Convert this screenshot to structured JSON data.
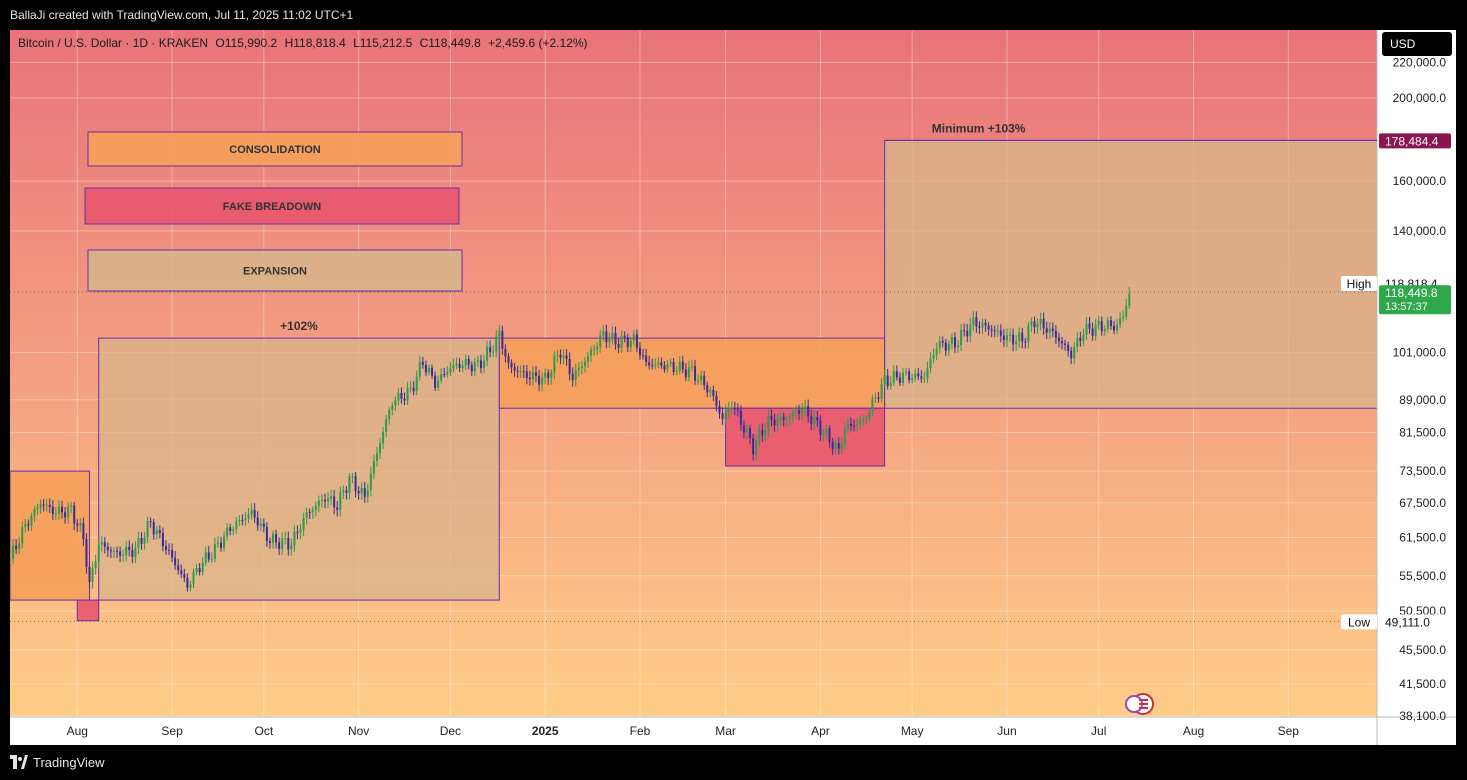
{
  "header": {
    "attribution": "BallaJi created with TradingView.com, Jul 11, 2025 11:02 UTC+1"
  },
  "symbol_legend": {
    "name": "Bitcoin / U.S. Dollar · 1D · KRAKEN",
    "open": "O115,990.2",
    "high": "H118,818.4",
    "low": "L115,212.5",
    "close": "C118,449.8",
    "change": "+2,459.6 (+2.12%)"
  },
  "currency_button": "USD",
  "footer": {
    "brand": "TradingView"
  },
  "colors": {
    "bg_top": "#e8737a",
    "bg_bottom": "#ffcd87",
    "orange_zone": "#f5a05a",
    "red_zone": "#e8566e",
    "expansion_zone": "#d8b48a",
    "zone_border": "#6a2bb0",
    "up_candle": "#2e9a4c",
    "down_candle": "#3a2a9a",
    "high_badge": "#8a1550",
    "price_badge": "#2ea84a"
  },
  "chart_data": {
    "type": "candlestick",
    "symbol": "Bitcoin / U.S. Dollar",
    "interval": "1D",
    "exchange": "KRAKEN",
    "yscale": "log",
    "y_tick_labels": [
      "220,000.0",
      "200,000.0",
      "160,000.0",
      "140,000.0",
      "101,000.0",
      "89,000.0",
      "81,500.0",
      "73,500.0",
      "67,500.0",
      "61,500.0",
      "55,500.0",
      "50,500.0",
      "45,500.0",
      "41,500.0",
      "38,100.0"
    ],
    "y_ticks": [
      220000,
      200000,
      160000,
      140000,
      101000,
      89000,
      81500,
      73500,
      67500,
      61500,
      55500,
      50500,
      45500,
      41500,
      38100
    ],
    "x_tick_labels": [
      "Aug",
      "Sep",
      "Oct",
      "Nov",
      "Dec",
      "2025",
      "Feb",
      "Mar",
      "Apr",
      "May",
      "Jun",
      "Jul",
      "Aug",
      "Sep"
    ],
    "x_ticks": [
      "2024-08-01",
      "2024-09-01",
      "2024-10-01",
      "2024-11-01",
      "2024-12-01",
      "2025-01-01",
      "2025-02-01",
      "2025-03-01",
      "2025-04-01",
      "2025-05-01",
      "2025-06-01",
      "2025-07-01",
      "2025-08-01",
      "2025-09-01"
    ],
    "xlim": [
      "2024-07-10",
      "2025-09-30"
    ],
    "ylim": [
      38000,
      240000
    ],
    "grid": true,
    "price_series": [
      {
        "date": "2024-07-10",
        "close": 58000
      },
      {
        "date": "2024-07-15",
        "close": 63500
      },
      {
        "date": "2024-07-20",
        "close": 67500
      },
      {
        "date": "2024-07-25",
        "close": 65800
      },
      {
        "date": "2024-07-30",
        "close": 66200
      },
      {
        "date": "2024-08-03",
        "close": 61500
      },
      {
        "date": "2024-08-05",
        "close": 54000
      },
      {
        "date": "2024-08-08",
        "close": 60500
      },
      {
        "date": "2024-08-14",
        "close": 58900
      },
      {
        "date": "2024-08-20",
        "close": 59500
      },
      {
        "date": "2024-08-25",
        "close": 64000
      },
      {
        "date": "2024-08-31",
        "close": 59000
      },
      {
        "date": "2024-09-06",
        "close": 54000
      },
      {
        "date": "2024-09-10",
        "close": 57000
      },
      {
        "date": "2024-09-15",
        "close": 59500
      },
      {
        "date": "2024-09-20",
        "close": 63000
      },
      {
        "date": "2024-09-27",
        "close": 65800
      },
      {
        "date": "2024-10-03",
        "close": 61000
      },
      {
        "date": "2024-10-10",
        "close": 60500
      },
      {
        "date": "2024-10-15",
        "close": 65500
      },
      {
        "date": "2024-10-21",
        "close": 68500
      },
      {
        "date": "2024-10-25",
        "close": 67000
      },
      {
        "date": "2024-10-29",
        "close": 72000
      },
      {
        "date": "2024-11-03",
        "close": 68500
      },
      {
        "date": "2024-11-06",
        "close": 75000
      },
      {
        "date": "2024-11-12",
        "close": 88500
      },
      {
        "date": "2024-11-18",
        "close": 91000
      },
      {
        "date": "2024-11-22",
        "close": 98500
      },
      {
        "date": "2024-11-26",
        "close": 93000
      },
      {
        "date": "2024-12-01",
        "close": 97000
      },
      {
        "date": "2024-12-05",
        "close": 98000
      },
      {
        "date": "2024-12-10",
        "close": 97500
      },
      {
        "date": "2024-12-14",
        "close": 101500
      },
      {
        "date": "2024-12-17",
        "close": 106000
      },
      {
        "date": "2024-12-20",
        "close": 97500
      },
      {
        "date": "2024-12-26",
        "close": 95000
      },
      {
        "date": "2025-01-01",
        "close": 94000
      },
      {
        "date": "2025-01-06",
        "close": 101500
      },
      {
        "date": "2025-01-10",
        "close": 94500
      },
      {
        "date": "2025-01-15",
        "close": 100000
      },
      {
        "date": "2025-01-20",
        "close": 106000
      },
      {
        "date": "2025-01-24",
        "close": 104000
      },
      {
        "date": "2025-01-30",
        "close": 104500
      },
      {
        "date": "2025-02-03",
        "close": 98000
      },
      {
        "date": "2025-02-10",
        "close": 97500
      },
      {
        "date": "2025-02-18",
        "close": 96000
      },
      {
        "date": "2025-02-24",
        "close": 91000
      },
      {
        "date": "2025-02-28",
        "close": 84500
      },
      {
        "date": "2025-03-03",
        "close": 88000
      },
      {
        "date": "2025-03-10",
        "close": 78500
      },
      {
        "date": "2025-03-15",
        "close": 84000
      },
      {
        "date": "2025-03-20",
        "close": 84500
      },
      {
        "date": "2025-03-26",
        "close": 87000
      },
      {
        "date": "2025-04-01",
        "close": 82500
      },
      {
        "date": "2025-04-07",
        "close": 77500
      },
      {
        "date": "2025-04-09",
        "close": 82500
      },
      {
        "date": "2025-04-15",
        "close": 84000
      },
      {
        "date": "2025-04-22",
        "close": 93500
      },
      {
        "date": "2025-04-28",
        "close": 95000
      },
      {
        "date": "2025-05-05",
        "close": 94500
      },
      {
        "date": "2025-05-09",
        "close": 103000
      },
      {
        "date": "2025-05-15",
        "close": 103500
      },
      {
        "date": "2025-05-21",
        "close": 109500
      },
      {
        "date": "2025-05-26",
        "close": 108000
      },
      {
        "date": "2025-06-01",
        "close": 105000
      },
      {
        "date": "2025-06-06",
        "close": 104500
      },
      {
        "date": "2025-06-10",
        "close": 110000
      },
      {
        "date": "2025-06-16",
        "close": 106500
      },
      {
        "date": "2025-06-22",
        "close": 100500
      },
      {
        "date": "2025-06-26",
        "close": 107000
      },
      {
        "date": "2025-07-02",
        "close": 108500
      },
      {
        "date": "2025-07-07",
        "close": 108500
      },
      {
        "date": "2025-07-09",
        "close": 111500
      },
      {
        "date": "2025-07-11",
        "close": 118449.8
      }
    ],
    "zones": [
      {
        "label": "",
        "kind": "orange",
        "from": "2024-07-10",
        "to": "2024-08-05",
        "y1": 52000,
        "y2": 73500
      },
      {
        "label": "",
        "kind": "red",
        "from": "2024-08-01",
        "to": "2024-08-08",
        "y1": 49200,
        "y2": 52000
      },
      {
        "label": "+102%",
        "kind": "expansion",
        "from": "2024-08-08",
        "to": "2024-12-17",
        "y1": 52000,
        "y2": 105000
      },
      {
        "label": "",
        "kind": "orange",
        "from": "2024-12-17",
        "to": "2025-04-22",
        "y1": 87000,
        "y2": 105000
      },
      {
        "label": "",
        "kind": "red",
        "from": "2025-03-01",
        "to": "2025-04-22",
        "y1": 74500,
        "y2": 87000
      },
      {
        "label": "Minimum +103%",
        "kind": "expansion",
        "from": "2025-04-22",
        "to": "2025-09-30",
        "y1": 87000,
        "y2": 178484.4
      }
    ],
    "legend_boxes": [
      {
        "label": "CONSOLIDATION",
        "kind": "orange"
      },
      {
        "label": "FAKE BREADOWN",
        "kind": "red"
      },
      {
        "label": "EXPANSION",
        "kind": "expansion"
      }
    ],
    "price_labels": [
      {
        "label": "",
        "value": "178,484.4",
        "y": 178484.4,
        "kind": "target"
      },
      {
        "label": "High",
        "value": "118,818.4",
        "y": 118818.4,
        "kind": "high"
      },
      {
        "label": "",
        "value": "118,449.8",
        "y": 118449.8,
        "kind": "last",
        "sub": "13:57:37"
      },
      {
        "label": "Low",
        "value": "49,111.0",
        "y": 49111.0,
        "kind": "low"
      }
    ]
  }
}
